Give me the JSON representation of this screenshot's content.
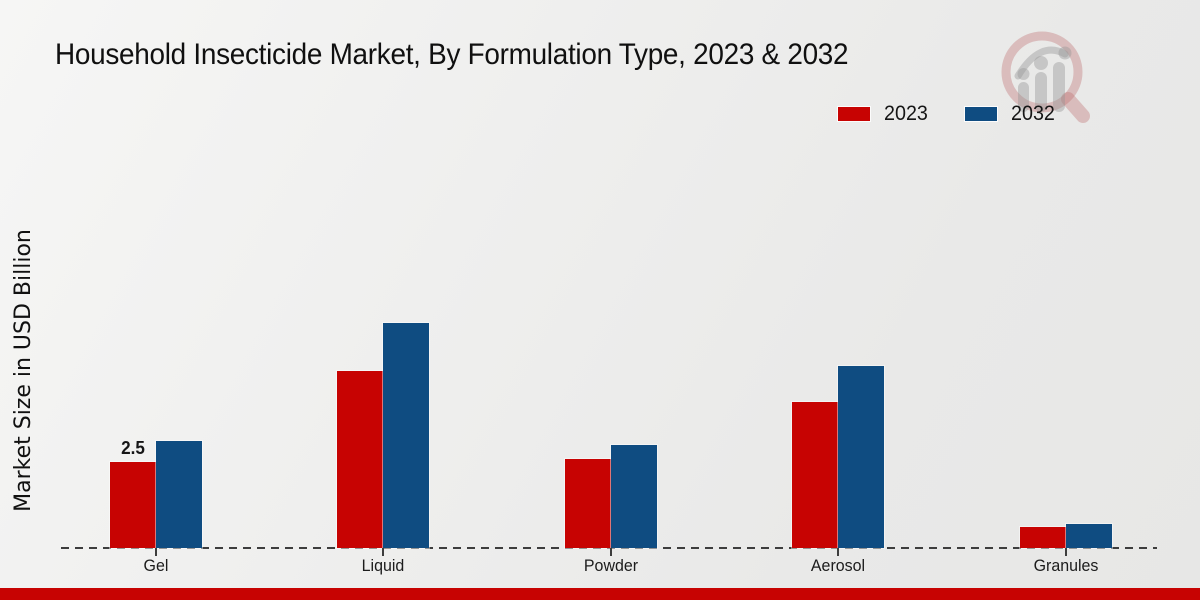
{
  "title": "Household Insecticide Market, By Formulation Type, 2023 & 2032",
  "watermark_icon": "market-research-future-logo",
  "footer": {
    "accent_color": "#c70302"
  },
  "chart_data": {
    "type": "bar",
    "title": "Household Insecticide Market, By Formulation Type, 2023 & 2032",
    "xlabel": "",
    "ylabel": "Market Size in USD Billion",
    "categories": [
      "Gel",
      "Liquid",
      "Powder",
      "Aerosol",
      "Granules"
    ],
    "series": [
      {
        "name": "2023",
        "color": "#c70302",
        "values": [
          2.5,
          5.15,
          2.6,
          4.25,
          0.6
        ]
      },
      {
        "name": "2032",
        "color": "#0f4c81",
        "values": [
          3.1,
          6.55,
          3.0,
          5.3,
          0.7
        ]
      }
    ],
    "bar_labels": [
      {
        "series": "2023",
        "category": "Gel",
        "text": "2.5"
      }
    ],
    "ylim": [
      0,
      7
    ],
    "grid": false,
    "y_ticks_visible": false,
    "legend_position": "top-right",
    "baseline_style": "dashed"
  }
}
